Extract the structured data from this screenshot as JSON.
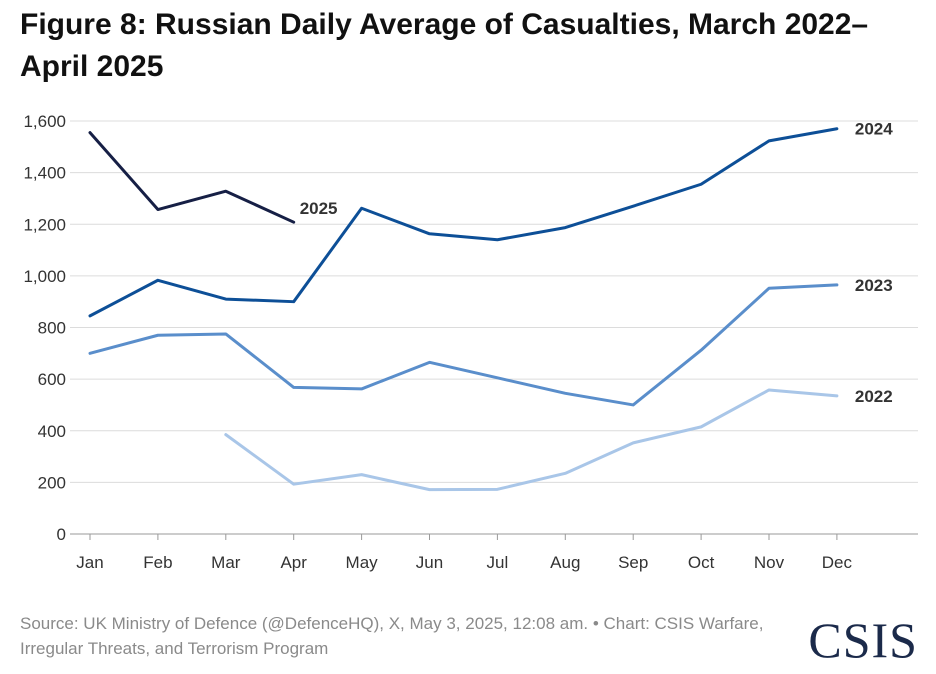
{
  "title": "Figure 8: Russian Daily Average of Casualties, March 2022–April 2025",
  "source": "Source: UK Ministry of Defence (@DefenceHQ), X, May 3, 2025, 12:08 am. • Chart: CSIS Warfare, Irregular Threats, and Terrorism Program",
  "logo": {
    "text": "CSIS",
    "color": "#1b2a4a"
  },
  "chart_data": {
    "type": "line",
    "title": "Figure 8: Russian Daily Average of Casualties, March 2022–April 2025",
    "xlabel": "",
    "ylabel": "",
    "categories": [
      "Jan",
      "Feb",
      "Mar",
      "Apr",
      "May",
      "Jun",
      "Jul",
      "Aug",
      "Sep",
      "Oct",
      "Nov",
      "Dec"
    ],
    "ylim": [
      0,
      1600
    ],
    "yticks": [
      0,
      200,
      400,
      600,
      800,
      1000,
      1200,
      1400,
      1600
    ],
    "ytick_labels": [
      "0",
      "200",
      "400",
      "600",
      "800",
      "1,000",
      "1,200",
      "1,400",
      "1,600"
    ],
    "grid": true,
    "legend": "direct labels at line ends",
    "series": [
      {
        "name": "2022",
        "color": "#a9c6e8",
        "values": [
          null,
          null,
          385,
          193,
          230,
          172,
          173,
          235,
          353,
          415,
          558,
          535
        ]
      },
      {
        "name": "2023",
        "color": "#5a8ecb",
        "values": [
          700,
          770,
          775,
          568,
          562,
          665,
          605,
          545,
          500,
          712,
          952,
          965
        ]
      },
      {
        "name": "2024",
        "color": "#0d4f97",
        "values": [
          845,
          983,
          910,
          900,
          1262,
          1163,
          1140,
          1187,
          1270,
          1355,
          1523,
          1570
        ]
      },
      {
        "name": "2025",
        "color": "#161f45",
        "values": [
          1555,
          1257,
          1328,
          1208,
          null,
          null,
          null,
          null,
          null,
          null,
          null,
          null
        ]
      }
    ]
  }
}
